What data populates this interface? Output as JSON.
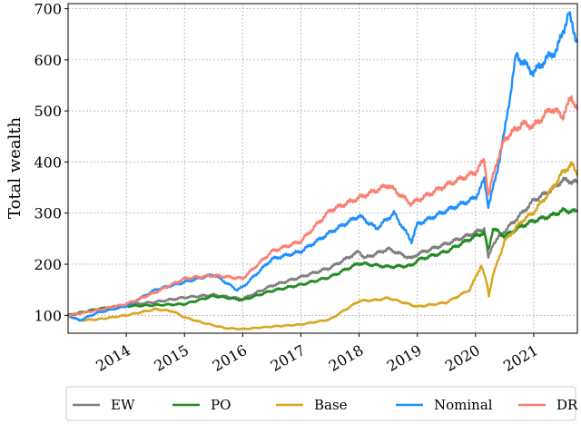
{
  "chart_data": {
    "type": "line",
    "title": "",
    "xlabel": "",
    "ylabel": "Total wealth",
    "xlim": [
      2013.0,
      2021.75
    ],
    "ylim": [
      65,
      710
    ],
    "yticks": [
      100,
      200,
      300,
      400,
      500,
      600,
      700
    ],
    "yticklabels": [
      "100",
      "200",
      "300",
      "400",
      "500",
      "600",
      "700"
    ],
    "xticks": [
      2014,
      2015,
      2016,
      2017,
      2018,
      2019,
      2020,
      2021
    ],
    "xticklabels": [
      "2014",
      "2015",
      "2016",
      "2017",
      "2018",
      "2019",
      "2020",
      "2021"
    ],
    "grid": true,
    "legend_position": "bottom",
    "series": [
      {
        "name": "EW",
        "color": "#7f7f7f",
        "points": [
          [
            2013.0,
            100
          ],
          [
            2013.5,
            112
          ],
          [
            2014.0,
            120
          ],
          [
            2014.5,
            126
          ],
          [
            2015.0,
            135
          ],
          [
            2015.5,
            140
          ],
          [
            2016.0,
            132
          ],
          [
            2016.5,
            158
          ],
          [
            2017.0,
            175
          ],
          [
            2017.5,
            193
          ],
          [
            2018.0,
            225
          ],
          [
            2018.1,
            212
          ],
          [
            2018.5,
            230
          ],
          [
            2018.9,
            211
          ],
          [
            2019.0,
            220
          ],
          [
            2019.5,
            240
          ],
          [
            2020.0,
            262
          ],
          [
            2020.15,
            270
          ],
          [
            2020.22,
            212
          ],
          [
            2020.3,
            240
          ],
          [
            2020.5,
            265
          ],
          [
            2020.8,
            300
          ],
          [
            2021.0,
            325
          ],
          [
            2021.3,
            345
          ],
          [
            2021.5,
            365
          ],
          [
            2021.75,
            360
          ]
        ]
      },
      {
        "name": "PO",
        "color": "#228b22",
        "points": [
          [
            2013.0,
            100
          ],
          [
            2013.5,
            112
          ],
          [
            2014.0,
            118
          ],
          [
            2014.5,
            120
          ],
          [
            2015.0,
            122
          ],
          [
            2015.5,
            138
          ],
          [
            2016.0,
            130
          ],
          [
            2016.5,
            148
          ],
          [
            2017.0,
            160
          ],
          [
            2017.5,
            175
          ],
          [
            2018.0,
            202
          ],
          [
            2018.5,
            195
          ],
          [
            2018.9,
            197
          ],
          [
            2019.0,
            208
          ],
          [
            2019.5,
            225
          ],
          [
            2020.0,
            255
          ],
          [
            2020.15,
            262
          ],
          [
            2020.22,
            226
          ],
          [
            2020.3,
            270
          ],
          [
            2020.5,
            255
          ],
          [
            2020.8,
            275
          ],
          [
            2021.0,
            285
          ],
          [
            2021.3,
            295
          ],
          [
            2021.5,
            305
          ],
          [
            2021.75,
            303
          ]
        ]
      },
      {
        "name": "Base",
        "color": "#daa520",
        "points": [
          [
            2013.0,
            100
          ],
          [
            2013.2,
            90
          ],
          [
            2013.5,
            92
          ],
          [
            2014.0,
            100
          ],
          [
            2014.5,
            112
          ],
          [
            2014.8,
            108
          ],
          [
            2015.0,
            96
          ],
          [
            2015.3,
            86
          ],
          [
            2015.7,
            75
          ],
          [
            2016.0,
            73
          ],
          [
            2016.5,
            78
          ],
          [
            2017.0,
            82
          ],
          [
            2017.5,
            92
          ],
          [
            2018.0,
            128
          ],
          [
            2018.3,
            130
          ],
          [
            2018.5,
            134
          ],
          [
            2019.0,
            117
          ],
          [
            2019.5,
            125
          ],
          [
            2019.9,
            150
          ],
          [
            2020.1,
            198
          ],
          [
            2020.2,
            160
          ],
          [
            2020.23,
            139
          ],
          [
            2020.3,
            178
          ],
          [
            2020.5,
            245
          ],
          [
            2020.8,
            285
          ],
          [
            2021.0,
            302
          ],
          [
            2021.3,
            345
          ],
          [
            2021.5,
            380
          ],
          [
            2021.65,
            395
          ],
          [
            2021.75,
            378
          ]
        ]
      },
      {
        "name": "Nominal",
        "color": "#1e90ff",
        "points": [
          [
            2013.0,
            100
          ],
          [
            2013.2,
            90
          ],
          [
            2013.5,
            105
          ],
          [
            2014.0,
            118
          ],
          [
            2014.5,
            150
          ],
          [
            2015.0,
            165
          ],
          [
            2015.5,
            180
          ],
          [
            2015.9,
            150
          ],
          [
            2016.0,
            155
          ],
          [
            2016.5,
            210
          ],
          [
            2017.0,
            225
          ],
          [
            2017.5,
            262
          ],
          [
            2018.0,
            295
          ],
          [
            2018.3,
            270
          ],
          [
            2018.6,
            300
          ],
          [
            2018.9,
            245
          ],
          [
            2019.0,
            278
          ],
          [
            2019.5,
            305
          ],
          [
            2020.0,
            330
          ],
          [
            2020.15,
            365
          ],
          [
            2020.22,
            315
          ],
          [
            2020.35,
            370
          ],
          [
            2020.5,
            460
          ],
          [
            2020.7,
            610
          ],
          [
            2020.9,
            585
          ],
          [
            2021.0,
            575
          ],
          [
            2021.2,
            600
          ],
          [
            2021.4,
            620
          ],
          [
            2021.6,
            690
          ],
          [
            2021.75,
            635
          ]
        ]
      },
      {
        "name": "DR",
        "color": "#fa8072",
        "points": [
          [
            2013.0,
            100
          ],
          [
            2013.5,
            110
          ],
          [
            2014.0,
            122
          ],
          [
            2014.5,
            145
          ],
          [
            2015.0,
            172
          ],
          [
            2015.5,
            178
          ],
          [
            2016.0,
            172
          ],
          [
            2016.5,
            225
          ],
          [
            2017.0,
            245
          ],
          [
            2017.5,
            305
          ],
          [
            2018.0,
            330
          ],
          [
            2018.5,
            355
          ],
          [
            2018.9,
            318
          ],
          [
            2019.0,
            325
          ],
          [
            2019.5,
            355
          ],
          [
            2020.0,
            380
          ],
          [
            2020.15,
            405
          ],
          [
            2020.22,
            335
          ],
          [
            2020.35,
            395
          ],
          [
            2020.5,
            445
          ],
          [
            2020.8,
            475
          ],
          [
            2021.0,
            470
          ],
          [
            2021.3,
            505
          ],
          [
            2021.5,
            490
          ],
          [
            2021.65,
            528
          ],
          [
            2021.75,
            503
          ]
        ]
      }
    ]
  }
}
